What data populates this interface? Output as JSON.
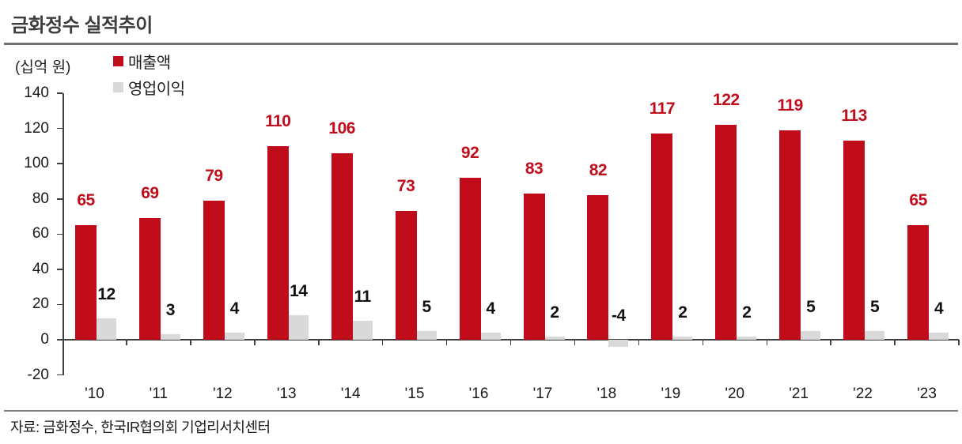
{
  "page": {
    "title": "금화정수 실적추이",
    "source": "자료: 금화정수, 한국IR협의회 기업리서치센터"
  },
  "colors": {
    "revenue": "#c00c1b",
    "profit": "#d9d9d9",
    "revenue_label": "#c00c1b",
    "profit_label": "#111111",
    "axis": "#3f3f3f"
  },
  "chart_data": {
    "type": "bar",
    "title": "금화정수 실적추이",
    "unit_label": "(십억 원)",
    "categories": [
      "'10",
      "'11",
      "'12",
      "'13",
      "'14",
      "'15",
      "'16",
      "'17",
      "'18",
      "'19",
      "'20",
      "'21",
      "'22",
      "'23"
    ],
    "series": [
      {
        "name": "매출액",
        "values": [
          65,
          69,
          79,
          110,
          106,
          73,
          92,
          83,
          82,
          117,
          122,
          119,
          113,
          65
        ]
      },
      {
        "name": "영업이익",
        "values": [
          12,
          3,
          4,
          14,
          11,
          5,
          4,
          2,
          -4,
          2,
          2,
          5,
          5,
          4
        ]
      }
    ],
    "ylim": [
      -20,
      140
    ],
    "ytick_step": 20,
    "grid": false,
    "legend_position": "top-left",
    "data_labels": true
  }
}
